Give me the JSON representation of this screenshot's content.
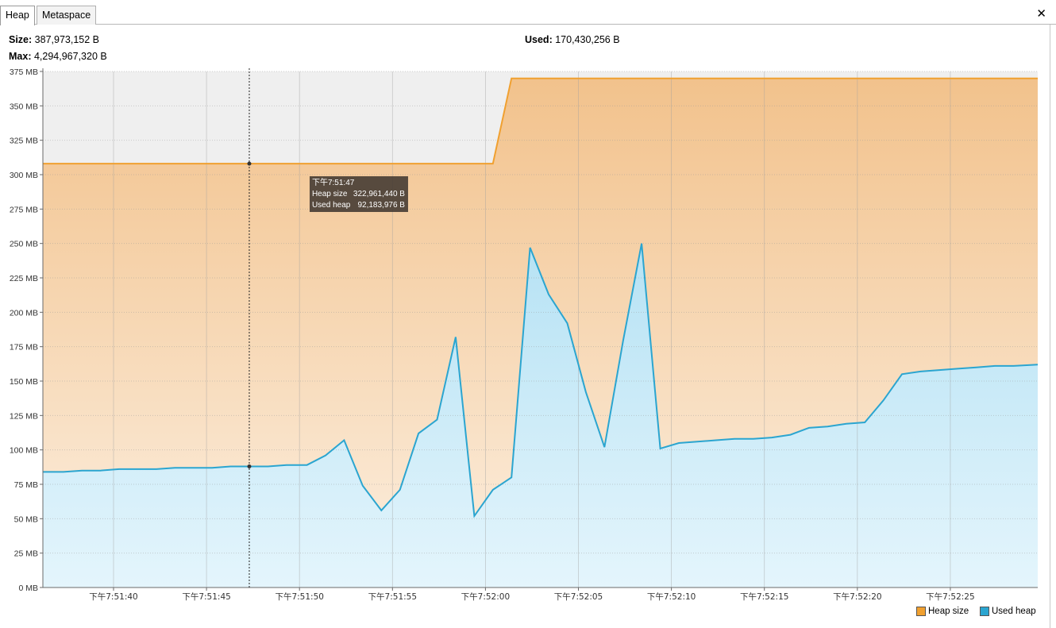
{
  "tabs": [
    {
      "label": "Heap",
      "active": true
    },
    {
      "label": "Metaspace",
      "active": false
    }
  ],
  "close_glyph": "✕",
  "stats": {
    "size_label": "Size:",
    "size_value": "387,973,152 B",
    "max_label": "Max:",
    "max_value": "4,294,967,320 B",
    "used_label": "Used:",
    "used_value": "170,430,256 B"
  },
  "chart_data": {
    "type": "area",
    "ylim": [
      0,
      375
    ],
    "y_ticks": [
      "0 MB",
      "25 MB",
      "50 MB",
      "75 MB",
      "100 MB",
      "125 MB",
      "150 MB",
      "175 MB",
      "200 MB",
      "225 MB",
      "250 MB",
      "275 MB",
      "300 MB",
      "325 MB",
      "350 MB",
      "375 MB"
    ],
    "x_ticks": [
      {
        "t": 40,
        "label": "下午7:51:40"
      },
      {
        "t": 45,
        "label": "下午7:51:45"
      },
      {
        "t": 50,
        "label": "下午7:51:50"
      },
      {
        "t": 55,
        "label": "下午7:51:55"
      },
      {
        "t": 60,
        "label": "下午7:52:00"
      },
      {
        "t": 65,
        "label": "下午7:52:05"
      },
      {
        "t": 70,
        "label": "下午7:52:10"
      },
      {
        "t": 75,
        "label": "下午7:52:15"
      },
      {
        "t": 80,
        "label": "下午7:52:20"
      },
      {
        "t": 85,
        "label": "下午7:52:25"
      }
    ],
    "xlim": [
      36.2,
      89.7
    ],
    "colors": {
      "heap_line": "#f0a030",
      "used_line": "#2ba5d0",
      "plot_bg": "#efefef"
    },
    "series": [
      {
        "name": "Heap size",
        "x": [
          36.2,
          60.4,
          61.4,
          89.7
        ],
        "y": [
          308,
          308,
          370,
          370
        ]
      },
      {
        "name": "Used heap",
        "x": [
          36.2,
          37.3,
          38.3,
          39.3,
          40.3,
          41.3,
          42.3,
          43.3,
          44.3,
          45.3,
          46.3,
          47.3,
          48.3,
          49.3,
          50.4,
          51.4,
          52.4,
          53.4,
          54.4,
          55.4,
          56.4,
          57.4,
          58.4,
          59.4,
          60.4,
          61.4,
          62.4,
          63.4,
          64.4,
          65.4,
          66.4,
          67.4,
          68.4,
          69.4,
          70.4,
          71.4,
          72.4,
          73.4,
          74.4,
          75.4,
          76.4,
          77.4,
          78.4,
          79.4,
          80.4,
          81.4,
          82.4,
          83.4,
          84.4,
          85.4,
          86.4,
          87.4,
          88.4,
          89.7
        ],
        "y": [
          84,
          84,
          85,
          85,
          86,
          86,
          86,
          87,
          87,
          87,
          88,
          88,
          88,
          89,
          89,
          96,
          107,
          74,
          56,
          71,
          112,
          122,
          182,
          52,
          71,
          80,
          247,
          213,
          192,
          142,
          102,
          179,
          250,
          101,
          105,
          106,
          107,
          108,
          108,
          109,
          111,
          116,
          117,
          119,
          120,
          136,
          155,
          157,
          158,
          159,
          160,
          161,
          161,
          162
        ]
      }
    ],
    "cursor": {
      "t": 47.3,
      "label": "下午7:51:47"
    },
    "tooltip": {
      "time": "下午7:51:47",
      "rows": [
        {
          "label": "Heap size",
          "value": "322,961,440 B"
        },
        {
          "label": "Used heap",
          "value": "92,183,976 B"
        }
      ]
    }
  },
  "legend": {
    "heap_label": "Heap size",
    "heap_color": "#f0a030",
    "used_label": "Used heap",
    "used_color": "#2ba5d0"
  }
}
